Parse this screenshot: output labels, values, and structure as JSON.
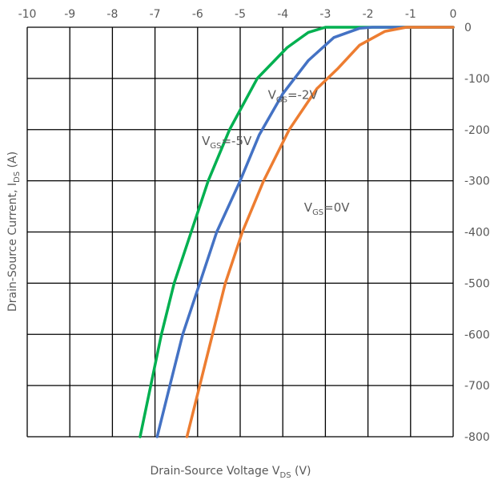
{
  "chart_data": {
    "type": "line",
    "title": "",
    "xlabel": "Drain-Source Voltage V",
    "xlabel_sub": "DS",
    "xlabel_unit": " (V)",
    "ylabel": "Drain-Source Current, I",
    "ylabel_sub": "DS",
    "ylabel_unit": " (A)",
    "xlim": [
      -10,
      0
    ],
    "ylim": [
      -800,
      0
    ],
    "x_ticks": [
      "-10",
      "-9",
      "-8",
      "-7",
      "-6",
      "-5",
      "-4",
      "-3",
      "-2",
      "-1",
      "0"
    ],
    "y_ticks": [
      "0",
      "-100",
      "-200",
      "-300",
      "-400",
      "-500",
      "-600",
      "-700",
      "-800"
    ],
    "x_axis_position": "top",
    "y_axis_position": "right",
    "grid": true,
    "series": [
      {
        "name": "V_GS=-5V",
        "color": "#00B050",
        "points": [
          [
            -7.35,
            -800
          ],
          [
            -7.1,
            -700
          ],
          [
            -6.85,
            -600
          ],
          [
            -6.55,
            -500
          ],
          [
            -6.15,
            -400
          ],
          [
            -5.75,
            -300
          ],
          [
            -5.25,
            -200
          ],
          [
            -4.6,
            -100
          ],
          [
            -3.9,
            -40
          ],
          [
            -3.4,
            -10
          ],
          [
            -3.0,
            0
          ],
          [
            -2.5,
            0
          ],
          [
            -2.0,
            0
          ],
          [
            -1.0,
            0
          ],
          [
            0,
            0
          ]
        ]
      },
      {
        "name": "V_GS=-2V",
        "color": "#4472C4",
        "points": [
          [
            -6.95,
            -800
          ],
          [
            -6.65,
            -700
          ],
          [
            -6.35,
            -600
          ],
          [
            -5.95,
            -500
          ],
          [
            -5.55,
            -400
          ],
          [
            -5.0,
            -300
          ],
          [
            -4.55,
            -210
          ],
          [
            -4.0,
            -130
          ],
          [
            -3.4,
            -65
          ],
          [
            -2.8,
            -20
          ],
          [
            -2.2,
            -2
          ],
          [
            -1.9,
            0
          ],
          [
            -1.0,
            0
          ],
          [
            0,
            0
          ]
        ]
      },
      {
        "name": "V_GS=0V",
        "color": "#ED7D31",
        "points": [
          [
            -6.25,
            -800
          ],
          [
            -5.95,
            -700
          ],
          [
            -5.65,
            -600
          ],
          [
            -5.35,
            -500
          ],
          [
            -4.95,
            -400
          ],
          [
            -4.45,
            -300
          ],
          [
            -3.85,
            -200
          ],
          [
            -3.2,
            -120
          ],
          [
            -2.7,
            -80
          ],
          [
            -2.2,
            -35
          ],
          [
            -1.6,
            -8
          ],
          [
            -1.1,
            0
          ],
          [
            0,
            0
          ]
        ]
      }
    ],
    "annotations": [
      {
        "prefix": "V",
        "sub": "GS",
        "text": "=-5V",
        "series": "V_GS=-5V",
        "x": -5.9,
        "y": -230
      },
      {
        "prefix": "V",
        "sub": "GS",
        "text": "=-2V",
        "series": "V_GS=-2V",
        "x": -4.35,
        "y": -140
      },
      {
        "prefix": "V",
        "sub": "GS",
        "text": "=0V",
        "series": "V_GS=0V",
        "x": -3.5,
        "y": -360
      }
    ]
  }
}
